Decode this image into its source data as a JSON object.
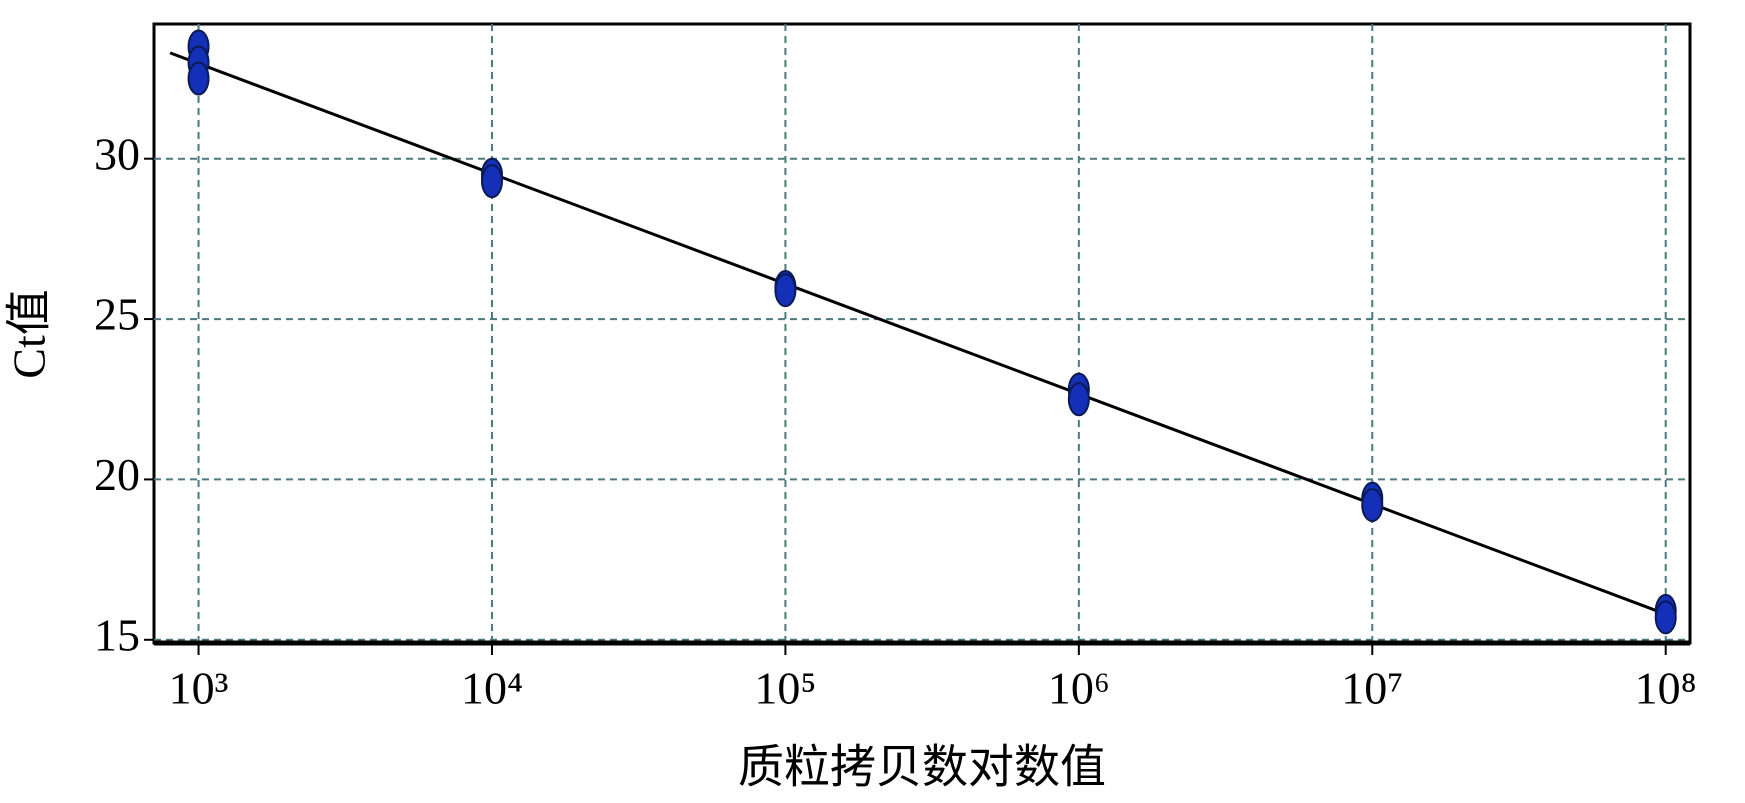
{
  "chart_data": {
    "type": "scatter",
    "xlabel": "质粒拷贝数对数值",
    "ylabel": "Ct值",
    "xscale": "log",
    "xlim": [
      705,
      121000000
    ],
    "ylim": [
      14.9,
      34.2
    ],
    "xticks": [
      {
        "value": 1000,
        "label": "10³"
      },
      {
        "value": 10000,
        "label": "10⁴"
      },
      {
        "value": 100000,
        "label": "10⁵"
      },
      {
        "value": 1000000,
        "label": "10⁶"
      },
      {
        "value": 10000000,
        "label": "10⁷"
      },
      {
        "value": 100000000,
        "label": "10⁸"
      }
    ],
    "yticks": [
      15,
      20,
      25,
      30
    ],
    "grid": true,
    "points": {
      "color": "#1530b8",
      "x": [
        1000,
        1000,
        1000,
        10000,
        10000,
        100000,
        100000,
        1000000,
        1000000,
        10000000,
        10000000,
        100000000,
        100000000
      ],
      "values": [
        33.5,
        33.0,
        32.5,
        29.5,
        29.3,
        26.0,
        25.9,
        22.8,
        22.5,
        19.4,
        19.2,
        15.9,
        15.7
      ]
    },
    "fit_line": {
      "color": "#000000",
      "x": [
        800,
        100000000
      ],
      "values": [
        33.3,
        15.8
      ]
    }
  }
}
